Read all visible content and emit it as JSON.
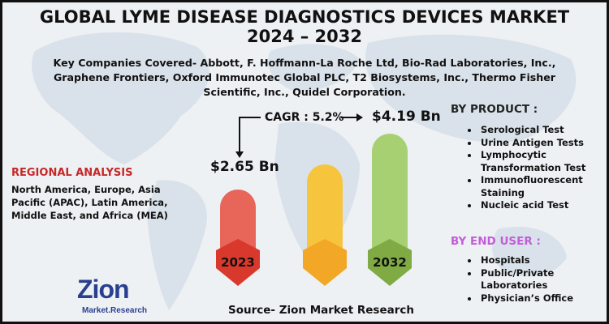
{
  "title_line1": "GLOBAL LYME DISEASE DIAGNOSTICS DEVICES MARKET",
  "title_line2": "2024 – 2032",
  "companies": "Key Companies Covered- Abbott, F. Hoffmann-La Roche Ltd, Bio-Rad Laboratories, Inc., Graphene Frontiers, Oxford Immunotec Global PLC, T2 Biosystems, Inc., Thermo Fisher Scientific, Inc., Quidel Corporation.",
  "cagr": {
    "label": "CAGR : 5.2%",
    "start_value": "$2.65 Bn",
    "end_value": "$4.19 Bn"
  },
  "regional": {
    "title": "REGIONAL ANALYSIS",
    "text": "North America, Europe, Asia Pacific (APAC), Latin America, Middle East, and Africa (MEA)"
  },
  "by_product": {
    "title": "BY PRODUCT :",
    "items": [
      "Serological Test",
      "Urine Antigen Tests",
      "Lymphocytic Transformation Test",
      "Immunofluorescent Staining",
      "Nucleic acid Test"
    ]
  },
  "by_end_user": {
    "title": "BY END USER :",
    "items": [
      "Hospitals",
      "Public/Private Laboratories",
      "Physician’s Office"
    ]
  },
  "source": "Source- Zion Market Research",
  "logo": {
    "name": "Zion",
    "sub": "Market.Research",
    "registered": "®"
  },
  "chart_data": {
    "type": "bar",
    "categories": [
      "2023",
      "",
      "2032"
    ],
    "values": [
      2.65,
      null,
      4.19
    ],
    "unit": "Bn USD",
    "bar_colors": [
      "#e8655a",
      "#f7c43d",
      "#a6d071"
    ],
    "bottom_colors": [
      "#d9392c",
      "#f2a826",
      "#7faa44"
    ]
  },
  "colors": {
    "red_bar": "#e8655a",
    "yellow_bar": "#f7c43d",
    "green_bar": "#a6d071",
    "regional_title": "#c62828",
    "end_user_title": "#c35cd9",
    "logo": "#2a3f8f"
  }
}
